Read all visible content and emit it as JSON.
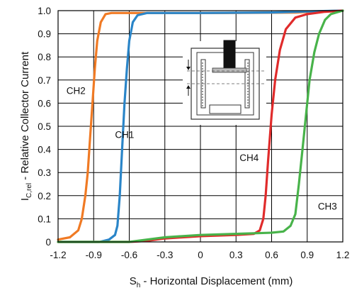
{
  "chart_data": {
    "type": "line",
    "xlabel": "S",
    "xlabel_sub": "h",
    "xlabel_rest": " - Horizontal Displacement (mm)",
    "ylabel": "I",
    "ylabel_sub": "C,rel",
    "ylabel_rest": " - Relative Collector Current",
    "xlim": [
      -1.2,
      1.2
    ],
    "ylim": [
      0,
      1.0
    ],
    "xticks": [
      -1.2,
      -0.9,
      -0.6,
      -0.3,
      0,
      0.3,
      0.6,
      0.9,
      1.2
    ],
    "xtick_labels": [
      "-1.2",
      "-0.9",
      "-0.6",
      "-0.3",
      "0",
      "0.3",
      "0.6",
      "0.9",
      "1.2"
    ],
    "yticks": [
      0,
      0.1,
      0.2,
      0.3,
      0.4,
      0.5,
      0.6,
      0.7,
      0.8,
      0.9,
      1.0
    ],
    "ytick_labels": [
      "0",
      "0.1",
      "0.2",
      "0.3",
      "0.4",
      "0.5",
      "0.6",
      "0.7",
      "0.8",
      "0.9",
      "1.0"
    ],
    "grid": true,
    "series": [
      {
        "name": "CH2",
        "color": "#F07A24",
        "points": [
          [
            -1.2,
            0.01
          ],
          [
            -1.1,
            0.02
          ],
          [
            -1.03,
            0.05
          ],
          [
            -1.0,
            0.1
          ],
          [
            -0.97,
            0.2
          ],
          [
            -0.95,
            0.3
          ],
          [
            -0.93,
            0.45
          ],
          [
            -0.91,
            0.6
          ],
          [
            -0.89,
            0.75
          ],
          [
            -0.87,
            0.87
          ],
          [
            -0.84,
            0.95
          ],
          [
            -0.8,
            0.985
          ],
          [
            -0.75,
            0.99
          ],
          [
            -0.5,
            0.99
          ],
          [
            0.2,
            0.99
          ],
          [
            0.8,
            0.992
          ],
          [
            1.0,
            0.997
          ],
          [
            1.2,
            1.0
          ]
        ]
      },
      {
        "name": "CH1",
        "color": "#2A85C8",
        "points": [
          [
            -1.2,
            0.0
          ],
          [
            -0.85,
            0.0
          ],
          [
            -0.77,
            0.01
          ],
          [
            -0.72,
            0.03
          ],
          [
            -0.7,
            0.07
          ],
          [
            -0.68,
            0.2
          ],
          [
            -0.66,
            0.4
          ],
          [
            -0.64,
            0.6
          ],
          [
            -0.62,
            0.75
          ],
          [
            -0.6,
            0.87
          ],
          [
            -0.57,
            0.95
          ],
          [
            -0.53,
            0.98
          ],
          [
            -0.45,
            0.99
          ],
          [
            0,
            0.99
          ],
          [
            0.6,
            0.992
          ],
          [
            1.0,
            0.998
          ],
          [
            1.2,
            1.0
          ]
        ]
      },
      {
        "name": "CH4",
        "color": "#E02B2B",
        "points": [
          [
            -1.2,
            0.0
          ],
          [
            -0.6,
            0.0
          ],
          [
            -0.45,
            0.005
          ],
          [
            -0.3,
            0.015
          ],
          [
            0,
            0.025
          ],
          [
            0.3,
            0.03
          ],
          [
            0.45,
            0.035
          ],
          [
            0.5,
            0.05
          ],
          [
            0.53,
            0.1
          ],
          [
            0.55,
            0.2
          ],
          [
            0.57,
            0.35
          ],
          [
            0.6,
            0.55
          ],
          [
            0.63,
            0.7
          ],
          [
            0.67,
            0.83
          ],
          [
            0.72,
            0.92
          ],
          [
            0.8,
            0.97
          ],
          [
            0.9,
            0.985
          ],
          [
            1.05,
            0.995
          ],
          [
            1.2,
            1.0
          ]
        ]
      },
      {
        "name": "CH3",
        "color": "#48B34A",
        "points": [
          [
            -1.2,
            0.0
          ],
          [
            -0.6,
            0.0
          ],
          [
            -0.45,
            0.01
          ],
          [
            -0.3,
            0.02
          ],
          [
            0,
            0.03
          ],
          [
            0.3,
            0.035
          ],
          [
            0.6,
            0.04
          ],
          [
            0.7,
            0.045
          ],
          [
            0.76,
            0.07
          ],
          [
            0.8,
            0.12
          ],
          [
            0.83,
            0.25
          ],
          [
            0.86,
            0.4
          ],
          [
            0.89,
            0.55
          ],
          [
            0.92,
            0.7
          ],
          [
            0.96,
            0.82
          ],
          [
            1.0,
            0.9
          ],
          [
            1.05,
            0.96
          ],
          [
            1.1,
            0.985
          ],
          [
            1.2,
            1.0
          ]
        ]
      }
    ],
    "curve_labels": [
      {
        "text": "CH2",
        "x": -1.13,
        "y": 0.64
      },
      {
        "text": "CH1",
        "x": -0.72,
        "y": 0.45
      },
      {
        "text": "CH4",
        "x": 0.33,
        "y": 0.35
      },
      {
        "text": "CH3",
        "x": 0.99,
        "y": 0.14
      }
    ]
  }
}
